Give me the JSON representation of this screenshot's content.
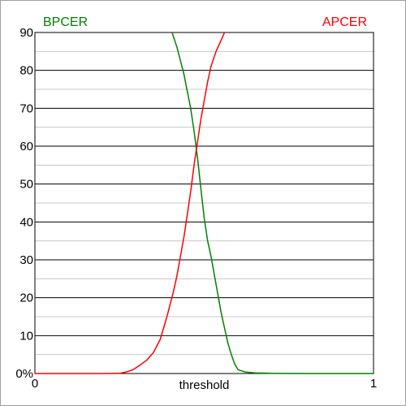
{
  "chart_data": {
    "type": "line",
    "title": "",
    "xlabel": "threshold",
    "ylabel": "",
    "xlim": [
      0,
      1
    ],
    "ylim": [
      0,
      90
    ],
    "x_ticks": [
      {
        "value": 0,
        "label": "0"
      },
      {
        "value": 1,
        "label": "1"
      }
    ],
    "y_ticks": [
      {
        "value": 0,
        "label": "0%"
      },
      {
        "value": 10,
        "label": "10"
      },
      {
        "value": 20,
        "label": "20"
      },
      {
        "value": 30,
        "label": "30"
      },
      {
        "value": 40,
        "label": "40"
      },
      {
        "value": 50,
        "label": "50"
      },
      {
        "value": 60,
        "label": "60"
      },
      {
        "value": 70,
        "label": "70"
      },
      {
        "value": 80,
        "label": "80"
      },
      {
        "value": 90,
        "label": "90"
      }
    ],
    "grid": {
      "major_step": 10,
      "minor_step": 5
    },
    "series": [
      {
        "name": "BPCER",
        "color": "#008000",
        "legend_position": "top-left",
        "points": [
          [
            0.405,
            90
          ],
          [
            0.42,
            86
          ],
          [
            0.44,
            79
          ],
          [
            0.46,
            70
          ],
          [
            0.47,
            64
          ],
          [
            0.48,
            57
          ],
          [
            0.49,
            49
          ],
          [
            0.5,
            41
          ],
          [
            0.51,
            35
          ],
          [
            0.52,
            31
          ],
          [
            0.53,
            26
          ],
          [
            0.54,
            21
          ],
          [
            0.55,
            16
          ],
          [
            0.56,
            12
          ],
          [
            0.57,
            8
          ],
          [
            0.58,
            5
          ],
          [
            0.59,
            2.5
          ],
          [
            0.6,
            1
          ],
          [
            0.62,
            0.4
          ],
          [
            0.65,
            0.15
          ],
          [
            0.7,
            0.05
          ],
          [
            0.8,
            0
          ],
          [
            1.0,
            0
          ]
        ]
      },
      {
        "name": "APCER",
        "color": "#ff0000",
        "legend_position": "top-right",
        "points": [
          [
            0,
            0
          ],
          [
            0.2,
            0
          ],
          [
            0.25,
            0.05
          ],
          [
            0.27,
            0.4
          ],
          [
            0.29,
            1
          ],
          [
            0.31,
            2.2
          ],
          [
            0.33,
            3.5
          ],
          [
            0.35,
            5.5
          ],
          [
            0.37,
            9
          ],
          [
            0.39,
            15
          ],
          [
            0.41,
            22
          ],
          [
            0.42,
            26
          ],
          [
            0.43,
            31
          ],
          [
            0.44,
            36
          ],
          [
            0.45,
            42
          ],
          [
            0.46,
            48
          ],
          [
            0.47,
            55
          ],
          [
            0.48,
            61
          ],
          [
            0.49,
            67
          ],
          [
            0.5,
            72
          ],
          [
            0.51,
            77
          ],
          [
            0.52,
            81
          ],
          [
            0.535,
            85
          ],
          [
            0.55,
            88
          ],
          [
            0.56,
            90
          ]
        ]
      }
    ]
  }
}
